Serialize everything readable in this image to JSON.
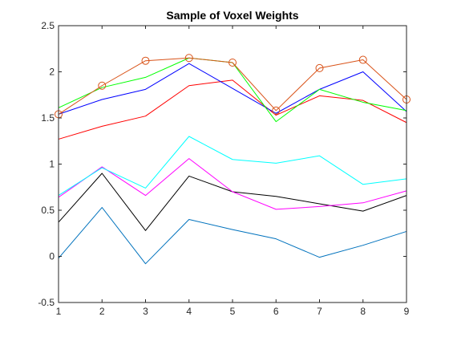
{
  "chart_data": {
    "type": "line",
    "title": "Sample of Voxel Weights",
    "xlabel": "",
    "ylabel": "",
    "xlim": [
      1,
      9
    ],
    "ylim": [
      -0.5,
      2.5
    ],
    "x": [
      1,
      2,
      3,
      4,
      5,
      6,
      7,
      8,
      9
    ],
    "x_ticks": [
      "1",
      "2",
      "3",
      "4",
      "5",
      "6",
      "7",
      "8",
      "9"
    ],
    "y_ticks": [
      "-0.5",
      "0",
      "0.5",
      "1",
      "1.5",
      "2",
      "2.5"
    ],
    "y_tick_values": [
      -0.5,
      0,
      0.5,
      1,
      1.5,
      2,
      2.5
    ],
    "grid": false,
    "legend": "none",
    "series": [
      {
        "color": "#0072BD",
        "marker": "none",
        "values": [
          -0.02,
          0.53,
          -0.08,
          0.4,
          0.29,
          0.19,
          -0.01,
          0.12,
          0.27
        ]
      },
      {
        "color": "#000000",
        "marker": "none",
        "values": [
          0.37,
          0.9,
          0.28,
          0.87,
          0.7,
          0.65,
          0.57,
          0.49,
          0.66
        ]
      },
      {
        "color": "#FF00FF",
        "marker": "none",
        "values": [
          0.64,
          0.97,
          0.66,
          1.06,
          0.7,
          0.51,
          0.54,
          0.58,
          0.71
        ]
      },
      {
        "color": "#00FFFF",
        "marker": "none",
        "values": [
          0.66,
          0.96,
          0.74,
          1.3,
          1.05,
          1.01,
          1.09,
          0.78,
          0.84
        ]
      },
      {
        "color": "#FF0000",
        "marker": "none",
        "values": [
          1.27,
          1.41,
          1.52,
          1.85,
          1.91,
          1.53,
          1.74,
          1.69,
          1.45
        ]
      },
      {
        "color": "#0000FF",
        "marker": "none",
        "values": [
          1.54,
          1.7,
          1.81,
          2.09,
          1.82,
          1.55,
          1.81,
          2.0,
          1.57
        ]
      },
      {
        "color": "#00FF00",
        "marker": "none",
        "values": [
          1.61,
          1.83,
          1.94,
          2.15,
          2.1,
          1.46,
          1.81,
          1.67,
          1.58
        ]
      },
      {
        "color": "#D95319",
        "marker": "circle",
        "values": [
          1.54,
          1.85,
          2.12,
          2.15,
          2.1,
          1.58,
          2.04,
          2.13,
          1.7
        ]
      }
    ]
  }
}
